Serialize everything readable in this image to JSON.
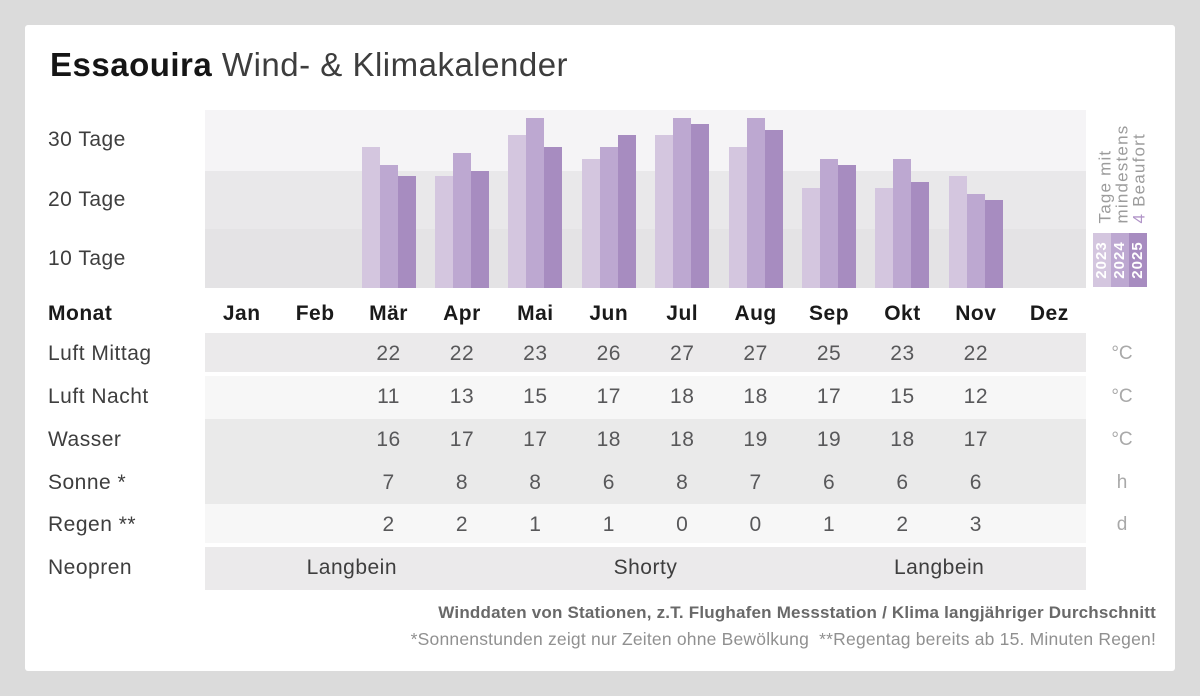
{
  "title": {
    "city": "Essaouira",
    "rest": " Wind- & Klimakalender"
  },
  "chart_data": {
    "type": "bar",
    "title": "Tage mit mindestens 4 Beaufort",
    "categories": [
      "Jan",
      "Feb",
      "Mär",
      "Apr",
      "Mai",
      "Jun",
      "Jul",
      "Aug",
      "Sep",
      "Okt",
      "Nov",
      "Dez"
    ],
    "series": [
      {
        "name": "2023",
        "color": "#d4c6df",
        "values": [
          null,
          null,
          29,
          24,
          31,
          27,
          31,
          29,
          22,
          22,
          24,
          null
        ]
      },
      {
        "name": "2024",
        "color": "#bda8d1",
        "values": [
          null,
          null,
          26,
          28,
          34,
          29,
          34,
          34,
          27,
          27,
          21,
          null
        ]
      },
      {
        "name": "2025",
        "color": "#a78cc0",
        "values": [
          null,
          null,
          24,
          25,
          29,
          31,
          33,
          32,
          26,
          23,
          20,
          null
        ]
      }
    ],
    "ylabel_bands": [
      {
        "label": "30 Tage",
        "range": [
          25,
          35
        ],
        "color": "#f5f4f6"
      },
      {
        "label": "20 Tage",
        "range": [
          15,
          25
        ],
        "color": "#e9e8ea"
      },
      {
        "label": "10 Tage",
        "range": [
          5,
          15
        ],
        "color": "#e4e3e5"
      }
    ],
    "ylim": [
      5,
      35
    ],
    "unit": "Tage",
    "grid": "horizontal-bands",
    "legend_position": "right",
    "side_label": {
      "line1": "Tage mit",
      "line2": "mindestens",
      "highlight": "4",
      "rest": " Beaufort"
    }
  },
  "table": {
    "month_header": "Monat",
    "months": [
      "Jan",
      "Feb",
      "Mär",
      "Apr",
      "Mai",
      "Jun",
      "Jul",
      "Aug",
      "Sep",
      "Okt",
      "Nov",
      "Dez"
    ],
    "rows": [
      {
        "label": "Luft Mittag",
        "unit": "°C",
        "values": [
          null,
          null,
          22,
          22,
          23,
          26,
          27,
          27,
          25,
          23,
          22,
          null
        ]
      },
      {
        "label": "Luft Nacht",
        "unit": "°C",
        "values": [
          null,
          null,
          11,
          13,
          15,
          17,
          18,
          18,
          17,
          15,
          12,
          null
        ]
      },
      {
        "label": "Wasser",
        "unit": "°C",
        "values": [
          null,
          null,
          16,
          17,
          17,
          18,
          18,
          19,
          19,
          18,
          17,
          null
        ]
      },
      {
        "label": "Sonne *",
        "unit": "h",
        "values": [
          null,
          null,
          7,
          8,
          8,
          6,
          8,
          7,
          6,
          6,
          6,
          null
        ]
      },
      {
        "label": "Regen **",
        "unit": "d",
        "values": [
          null,
          null,
          2,
          2,
          1,
          1,
          0,
          0,
          1,
          2,
          3,
          null
        ]
      }
    ],
    "neopren": {
      "label": "Neopren",
      "segments": [
        {
          "text": "Langbein",
          "from": 0,
          "to": 3
        },
        {
          "text": "Shorty",
          "from": 4,
          "to": 7
        },
        {
          "text": "Langbein",
          "from": 8,
          "to": 11
        }
      ]
    }
  },
  "footer": {
    "line1": "Winddaten von Stationen, z.T. Flughafen Messstation / Klima langjähriger Durchschnitt",
    "line2": "*Sonnenstunden zeigt nur Zeiten ohne Bewölkung  **Regentag bereits ab 15. Minuten Regen!"
  },
  "colors": {
    "page_bg": "#dbdbdb",
    "card_bg": "#ffffff",
    "accent_purple": "#b195c8",
    "row_gray": "#ebeaeb",
    "row_light": "#f7f7f7",
    "text_dark": "#1a1a1a",
    "label_gray": "#3e3e3e",
    "value_gray": "#58585a",
    "unit_gray": "#a9a9a9",
    "footer_dark": "#696969",
    "footer_light": "#909090",
    "side_label_gray": "#9c9c9c"
  }
}
